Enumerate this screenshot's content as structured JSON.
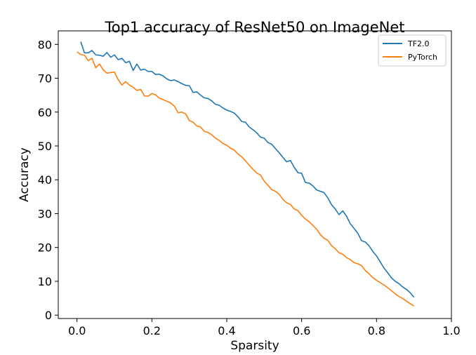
{
  "chart_data": {
    "type": "line",
    "title": "Top1 accuracy of ResNet50 on ImageNet",
    "xlabel": "Sparsity",
    "ylabel": "Accuracy",
    "xlim": [
      -0.05,
      1.0
    ],
    "ylim": [
      -1,
      84
    ],
    "xticks": [
      0.0,
      0.2,
      0.4,
      0.6,
      0.8,
      1.0
    ],
    "xtick_labels": [
      "0.0",
      "0.2",
      "0.4",
      "0.6",
      "0.8",
      "1.0"
    ],
    "yticks": [
      0,
      10,
      20,
      30,
      40,
      50,
      60,
      70,
      80
    ],
    "ytick_labels": [
      "0",
      "10",
      "20",
      "30",
      "40",
      "50",
      "60",
      "70",
      "80"
    ],
    "grid": false,
    "legend_position": "top-right",
    "series": [
      {
        "name": "TF2.0",
        "color": "#1f77b4",
        "x": [
          0.01,
          0.02,
          0.03,
          0.04,
          0.05,
          0.06,
          0.07,
          0.08,
          0.09,
          0.1,
          0.11,
          0.12,
          0.13,
          0.14,
          0.15,
          0.16,
          0.17,
          0.18,
          0.19,
          0.2,
          0.21,
          0.22,
          0.23,
          0.24,
          0.25,
          0.26,
          0.27,
          0.28,
          0.29,
          0.3,
          0.31,
          0.32,
          0.33,
          0.34,
          0.35,
          0.36,
          0.37,
          0.38,
          0.39,
          0.4,
          0.41,
          0.42,
          0.43,
          0.44,
          0.45,
          0.46,
          0.47,
          0.48,
          0.49,
          0.5,
          0.51,
          0.52,
          0.53,
          0.54,
          0.55,
          0.56,
          0.57,
          0.58,
          0.59,
          0.6,
          0.61,
          0.62,
          0.63,
          0.64,
          0.65,
          0.66,
          0.67,
          0.68,
          0.69,
          0.7,
          0.71,
          0.72,
          0.73,
          0.74,
          0.75,
          0.76,
          0.77,
          0.78,
          0.79,
          0.8,
          0.81,
          0.82,
          0.83,
          0.84,
          0.85,
          0.86,
          0.87,
          0.88,
          0.89,
          0.9
        ],
        "y": [
          80.8,
          77.5,
          77.5,
          78.2,
          76.9,
          76.8,
          76.5,
          77.6,
          76.2,
          76.9,
          75.5,
          75.9,
          74.6,
          75.0,
          72.3,
          74.2,
          72.4,
          72.7,
          72.0,
          72.0,
          71.1,
          71.2,
          70.7,
          69.8,
          69.3,
          69.5,
          69.0,
          68.4,
          67.9,
          67.8,
          65.8,
          66.0,
          65.0,
          64.2,
          64.0,
          63.3,
          62.3,
          62.0,
          61.2,
          60.6,
          60.2,
          59.7,
          58.6,
          57.2,
          57.0,
          55.6,
          54.8,
          53.9,
          52.6,
          52.3,
          51.0,
          50.5,
          49.2,
          48.0,
          46.6,
          45.3,
          45.7,
          43.7,
          42.1,
          41.9,
          39.2,
          39.0,
          38.2,
          37.0,
          36.6,
          36.2,
          34.6,
          32.6,
          31.3,
          29.7,
          30.8,
          29.2,
          27.0,
          25.6,
          24.2,
          22.0,
          21.6,
          20.5,
          18.8,
          17.5,
          15.7,
          13.9,
          12.5,
          11.0,
          10.0,
          9.3,
          8.3,
          7.6,
          6.6,
          5.3
        ]
      },
      {
        "name": "PyTorch",
        "color": "#ff7f0e",
        "x": [
          0.0,
          0.01,
          0.02,
          0.03,
          0.04,
          0.05,
          0.06,
          0.07,
          0.08,
          0.09,
          0.1,
          0.11,
          0.12,
          0.13,
          0.14,
          0.15,
          0.16,
          0.17,
          0.18,
          0.19,
          0.2,
          0.21,
          0.22,
          0.23,
          0.24,
          0.25,
          0.26,
          0.27,
          0.28,
          0.29,
          0.3,
          0.31,
          0.32,
          0.33,
          0.34,
          0.35,
          0.36,
          0.37,
          0.38,
          0.39,
          0.4,
          0.41,
          0.42,
          0.43,
          0.44,
          0.45,
          0.46,
          0.47,
          0.48,
          0.49,
          0.5,
          0.51,
          0.52,
          0.53,
          0.54,
          0.55,
          0.56,
          0.57,
          0.58,
          0.59,
          0.6,
          0.61,
          0.62,
          0.63,
          0.64,
          0.65,
          0.66,
          0.67,
          0.68,
          0.69,
          0.7,
          0.71,
          0.72,
          0.73,
          0.74,
          0.75,
          0.76,
          0.77,
          0.78,
          0.79,
          0.8,
          0.81,
          0.82,
          0.83,
          0.84,
          0.85,
          0.86,
          0.87,
          0.88,
          0.89,
          0.9
        ],
        "y": [
          77.8,
          77.0,
          76.8,
          75.2,
          75.9,
          73.1,
          74.2,
          72.5,
          71.5,
          71.7,
          71.8,
          69.6,
          68.0,
          69.0,
          68.0,
          67.3,
          66.4,
          66.7,
          64.8,
          64.7,
          65.5,
          65.1,
          64.1,
          63.7,
          63.2,
          62.7,
          61.8,
          59.8,
          60.0,
          59.5,
          57.5,
          57.0,
          55.9,
          55.6,
          54.3,
          54.0,
          53.3,
          52.3,
          51.6,
          50.7,
          50.2,
          49.3,
          48.8,
          47.6,
          46.8,
          45.6,
          44.3,
          43.1,
          42.0,
          41.4,
          39.6,
          38.4,
          37.1,
          36.6,
          35.7,
          34.2,
          33.2,
          32.7,
          31.4,
          30.9,
          29.5,
          28.4,
          27.6,
          26.5,
          25.4,
          23.8,
          22.7,
          22.1,
          20.5,
          19.6,
          18.4,
          18.0,
          17.0,
          16.4,
          15.5,
          15.2,
          14.6,
          13.2,
          12.2,
          11.1,
          10.3,
          9.6,
          8.9,
          8.1,
          7.2,
          6.3,
          5.5,
          4.9,
          4.1,
          3.4,
          2.7
        ]
      }
    ]
  }
}
